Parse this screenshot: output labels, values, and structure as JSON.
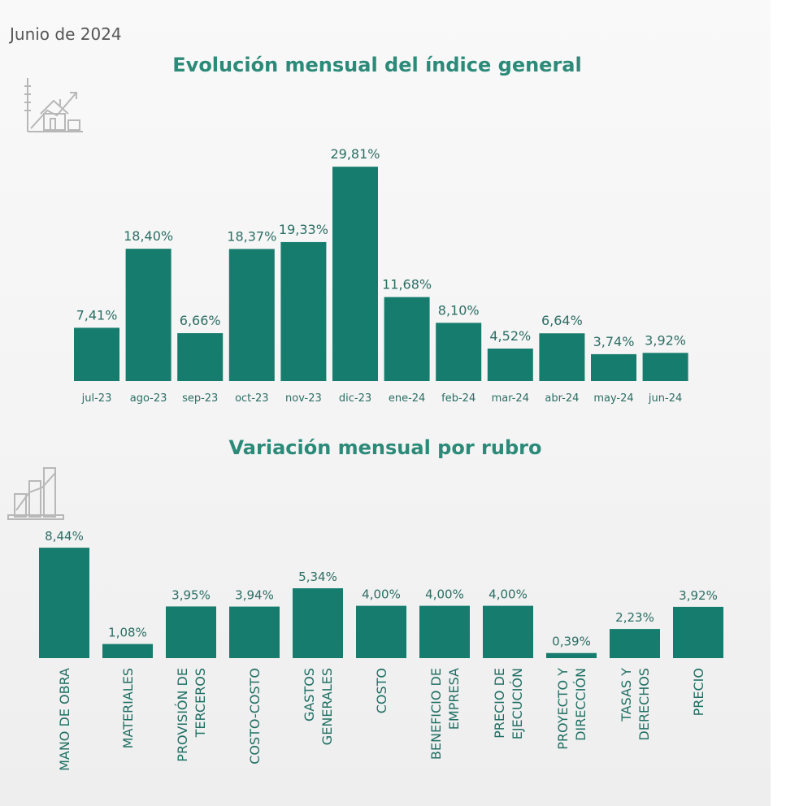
{
  "header": {
    "date": "Junio de 2024"
  },
  "colors": {
    "bar": "#167d6e",
    "title": "#2b8a78",
    "label": "#1f6f63",
    "icon": "#b5b5b5"
  },
  "icons": {
    "chart1": "house-growth-chart-icon",
    "chart2": "bar-chart-icon"
  },
  "chart_data": [
    {
      "type": "bar",
      "title": "Evolución mensual del índice general",
      "categories": [
        "jul-23",
        "ago-23",
        "sep-23",
        "oct-23",
        "nov-23",
        "dic-23",
        "ene-24",
        "feb-24",
        "mar-24",
        "abr-24",
        "may-24",
        "jun-24"
      ],
      "values": [
        7.41,
        18.4,
        6.66,
        18.37,
        19.33,
        29.81,
        11.68,
        8.1,
        4.52,
        6.64,
        3.74,
        3.92
      ],
      "value_labels": [
        "7,41%",
        "18,40%",
        "6,66%",
        "18,37%",
        "19,33%",
        "29,81%",
        "11,68%",
        "8,10%",
        "4,52%",
        "6,64%",
        "3,74%",
        "3,92%"
      ],
      "xlabel": "",
      "ylabel": "",
      "ylim": [
        0,
        30
      ],
      "grid": false,
      "legend": "none"
    },
    {
      "type": "bar",
      "title": "Variación mensual por rubro",
      "categories": [
        [
          "MANO DE OBRA"
        ],
        [
          "MATERIALES"
        ],
        [
          "PROVISIÓN DE",
          "TERCEROS"
        ],
        [
          "COSTO-COSTO"
        ],
        [
          "GASTOS",
          "GENERALES"
        ],
        [
          "COSTO"
        ],
        [
          "BENEFICIO DE",
          "EMPRESA"
        ],
        [
          "PRECIO DE",
          "EJECUCIÓN"
        ],
        [
          "PROYECTO Y",
          "DIRECCIÓN"
        ],
        [
          "TASAS Y",
          "DERECHOS"
        ],
        [
          "PRECIO"
        ]
      ],
      "values": [
        8.44,
        1.08,
        3.95,
        3.94,
        5.34,
        4.0,
        4.0,
        4.0,
        0.39,
        2.23,
        3.92
      ],
      "value_labels": [
        "8,44%",
        "1,08%",
        "3,95%",
        "3,94%",
        "5,34%",
        "4,00%",
        "4,00%",
        "4,00%",
        "0,39%",
        "2,23%",
        "3,92%"
      ],
      "xlabel": "",
      "ylabel": "",
      "ylim": [
        0,
        8.5
      ],
      "grid": false,
      "legend": "none"
    }
  ]
}
